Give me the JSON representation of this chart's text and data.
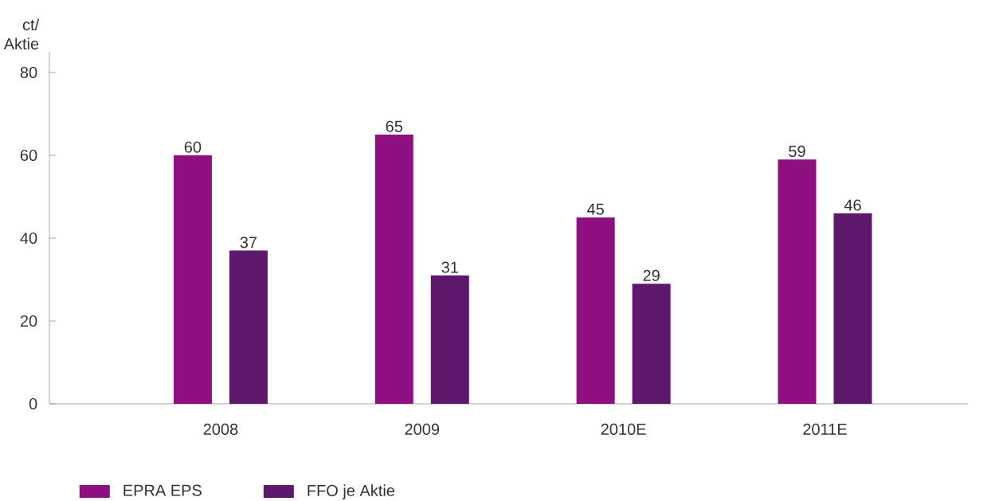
{
  "chart_data": {
    "type": "bar",
    "ylabel": "ct/ Aktie",
    "categories": [
      "2008",
      "2009",
      "2010E",
      "2011E"
    ],
    "series": [
      {
        "name": "EPRA EPS",
        "color": "#8e1080",
        "values": [
          60,
          65,
          45,
          59
        ]
      },
      {
        "name": "FFO je Aktie",
        "color": "#5e186b",
        "values": [
          37,
          31,
          29,
          46
        ]
      }
    ],
    "ylim": [
      0,
      85
    ],
    "yticks": [
      0,
      20,
      40,
      60,
      80
    ],
    "data_labels": true,
    "legend": "bottom left"
  }
}
